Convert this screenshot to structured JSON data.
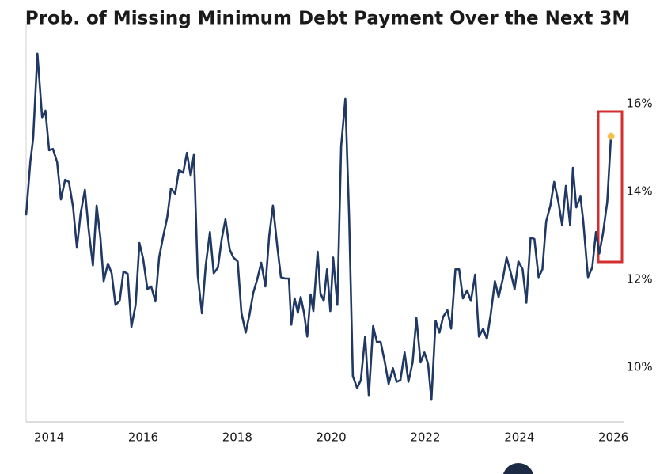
{
  "chart_data": {
    "type": "line",
    "title": "Prob. of Missing Minimum Debt Payment Over the Next 3M",
    "x": [
      2013.51,
      2013.6,
      2013.66,
      2013.75,
      2013.85,
      2013.92,
      2014.0,
      2014.08,
      2014.17,
      2014.25,
      2014.34,
      2014.42,
      2014.51,
      2014.59,
      2014.67,
      2014.76,
      2014.84,
      2014.93,
      2015.01,
      2015.09,
      2015.16,
      2015.25,
      2015.33,
      2015.41,
      2015.5,
      2015.58,
      2015.67,
      2015.75,
      2015.84,
      2015.92,
      2016.0,
      2016.09,
      2016.17,
      2016.26,
      2016.34,
      2016.42,
      2016.51,
      2016.59,
      2016.68,
      2016.76,
      2016.85,
      2016.93,
      2017.01,
      2017.08,
      2017.16,
      2017.25,
      2017.33,
      2017.42,
      2017.5,
      2017.59,
      2017.67,
      2017.75,
      2017.84,
      2017.92,
      2018.01,
      2018.09,
      2018.18,
      2018.26,
      2018.34,
      2018.43,
      2018.51,
      2018.6,
      2018.68,
      2018.76,
      2018.85,
      2018.93,
      2019.02,
      2019.1,
      2019.15,
      2019.22,
      2019.29,
      2019.35,
      2019.42,
      2019.49,
      2019.56,
      2019.62,
      2019.71,
      2019.77,
      2019.84,
      2019.91,
      2019.98,
      2020.04,
      2020.13,
      2020.21,
      2020.3,
      2020.38,
      2020.46,
      2020.55,
      2020.63,
      2020.72,
      2020.8,
      2020.89,
      2020.97,
      2021.05,
      2021.14,
      2021.22,
      2021.31,
      2021.39,
      2021.47,
      2021.56,
      2021.64,
      2021.73,
      2021.81,
      2021.9,
      2021.98,
      2022.06,
      2022.13,
      2022.22,
      2022.3,
      2022.38,
      2022.47,
      2022.55,
      2022.64,
      2022.72,
      2022.8,
      2022.89,
      2022.97,
      2023.06,
      2023.14,
      2023.23,
      2023.31,
      2023.39,
      2023.48,
      2023.56,
      2023.65,
      2023.73,
      2023.82,
      2023.9,
      2023.98,
      2024.07,
      2024.15,
      2024.24,
      2024.32,
      2024.41,
      2024.49,
      2024.57,
      2024.66,
      2024.74,
      2024.83,
      2024.91,
      2024.99,
      2025.08,
      2025.14,
      2025.21,
      2025.3,
      2025.36,
      2025.46,
      2025.55,
      2025.63,
      2025.7,
      2025.78,
      2025.87,
      2025.95
    ],
    "series": [
      {
        "color": "#1f3864",
        "values": [
          13.46,
          14.67,
          15.21,
          17.14,
          15.69,
          15.84,
          14.94,
          14.97,
          14.67,
          13.82,
          14.27,
          14.22,
          13.64,
          12.72,
          13.5,
          14.04,
          13.14,
          12.32,
          13.68,
          12.95,
          11.96,
          12.36,
          12.14,
          11.42,
          11.51,
          12.18,
          12.13,
          10.92,
          11.42,
          12.83,
          12.47,
          11.78,
          11.84,
          11.5,
          12.5,
          12.95,
          13.41,
          14.07,
          13.95,
          14.49,
          14.43,
          14.88,
          14.36,
          14.85,
          12.09,
          11.23,
          12.32,
          13.08,
          12.14,
          12.27,
          12.92,
          13.37,
          12.68,
          12.5,
          12.41,
          11.24,
          10.79,
          11.19,
          11.69,
          12.02,
          12.38,
          11.84,
          12.99,
          13.68,
          12.77,
          12.05,
          12.02,
          12.02,
          10.97,
          11.57,
          11.24,
          11.6,
          11.24,
          10.7,
          11.66,
          11.28,
          12.63,
          11.69,
          11.51,
          12.23,
          11.28,
          12.5,
          11.42,
          15.03,
          16.11,
          13.41,
          9.8,
          9.53,
          9.71,
          10.7,
          9.35,
          10.94,
          10.58,
          10.58,
          10.11,
          9.62,
          9.98,
          9.67,
          9.71,
          10.34,
          9.67,
          10.11,
          11.12,
          10.11,
          10.34,
          10.07,
          9.26,
          11.06,
          10.79,
          11.15,
          11.3,
          10.88,
          12.23,
          12.23,
          11.57,
          11.75,
          11.51,
          12.11,
          10.7,
          10.88,
          10.65,
          11.19,
          11.96,
          11.6,
          12.02,
          12.5,
          12.14,
          11.78,
          12.41,
          12.23,
          11.47,
          12.95,
          12.92,
          12.05,
          12.23,
          13.32,
          13.68,
          14.22,
          13.77,
          13.23,
          14.13,
          13.23,
          14.54,
          13.64,
          13.89,
          13.32,
          12.05,
          12.27,
          13.08,
          12.59,
          13.05,
          13.77,
          15.26
        ]
      }
    ],
    "highlight_color": "#f2c14e",
    "xlim": [
      2013.51,
      2026.2
    ],
    "xticks": [
      2014,
      2016,
      2018,
      2020,
      2022,
      2024,
      2026
    ],
    "ylim": [
      8.76,
      17.82
    ],
    "yticks": [
      {
        "value": 10,
        "label": "10%"
      },
      {
        "value": 12,
        "label": "12%"
      },
      {
        "value": 14,
        "label": "14%"
      },
      {
        "value": 16,
        "label": "16%"
      }
    ]
  }
}
